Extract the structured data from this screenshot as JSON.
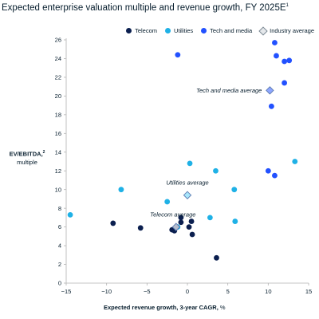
{
  "title": "Expected enterprise valuation multiple and revenue growth, FY 2025E",
  "title_footnote": "1",
  "ylabel_main": "EV/EBITDA,",
  "ylabel_footnote": "2",
  "ylabel_sub": "multiple",
  "xlabel_main": "Expected revenue growth, 3-year CAGR,",
  "xlabel_unit": "%",
  "legend": {
    "telecom": "Telecom",
    "utilities": "Utilities",
    "tech": "Tech and media",
    "average": "Industry average"
  },
  "colors": {
    "telecom": "#0b1f4f",
    "utilities": "#1fb1e6",
    "tech": "#2251ff",
    "average_fill": "#c9eefb",
    "average_stroke": "#5b7ab0"
  },
  "chart_data": {
    "type": "scatter",
    "title": "Expected enterprise valuation multiple and revenue growth, FY 2025E",
    "xlabel": "Expected revenue growth, 3-year CAGR, %",
    "ylabel": "EV/EBITDA, multiple",
    "xlim": [
      -15,
      15
    ],
    "ylim": [
      0,
      26
    ],
    "xticks": [
      -15,
      -10,
      -5,
      0,
      5,
      10,
      15
    ],
    "yticks": [
      0,
      2,
      4,
      6,
      8,
      10,
      12,
      14,
      16,
      18,
      20,
      22,
      24,
      26
    ],
    "grid": false,
    "legend_position": "top-right",
    "series": [
      {
        "name": "Telecom",
        "points": [
          {
            "x": -9.2,
            "y": 6.4
          },
          {
            "x": -5.8,
            "y": 5.9
          },
          {
            "x": -1.9,
            "y": 5.7
          },
          {
            "x": -1.6,
            "y": 5.6
          },
          {
            "x": -0.8,
            "y": 6.5
          },
          {
            "x": -0.8,
            "y": 7.0
          },
          {
            "x": 0.2,
            "y": 6.0
          },
          {
            "x": 0.5,
            "y": 6.6
          },
          {
            "x": 0.6,
            "y": 5.2
          },
          {
            "x": 3.6,
            "y": 2.7
          }
        ]
      },
      {
        "name": "Utilities",
        "points": [
          {
            "x": -14.5,
            "y": 7.3
          },
          {
            "x": -8.2,
            "y": 10.0
          },
          {
            "x": -2.5,
            "y": 8.7
          },
          {
            "x": -1.2,
            "y": 6.0
          },
          {
            "x": 0.3,
            "y": 12.8
          },
          {
            "x": 2.8,
            "y": 7.0
          },
          {
            "x": 3.5,
            "y": 12.0
          },
          {
            "x": 5.8,
            "y": 10.0
          },
          {
            "x": 5.9,
            "y": 6.6
          },
          {
            "x": 13.3,
            "y": 13.0
          }
        ]
      },
      {
        "name": "Tech and media",
        "points": [
          {
            "x": -1.2,
            "y": 24.4
          },
          {
            "x": 10.0,
            "y": 12.0
          },
          {
            "x": 10.4,
            "y": 18.9
          },
          {
            "x": 10.8,
            "y": 11.5
          },
          {
            "x": 10.8,
            "y": 25.7
          },
          {
            "x": 11.0,
            "y": 24.3
          },
          {
            "x": 12.0,
            "y": 21.4
          },
          {
            "x": 12.0,
            "y": 23.7
          },
          {
            "x": 12.6,
            "y": 23.8
          }
        ]
      }
    ],
    "averages": [
      {
        "name": "Tech and media average",
        "x": 10.2,
        "y": 20.6
      },
      {
        "name": "Utilities average",
        "x": 0.0,
        "y": 9.4
      },
      {
        "name": "Telecom average",
        "x": -1.4,
        "y": 6.0
      }
    ]
  }
}
